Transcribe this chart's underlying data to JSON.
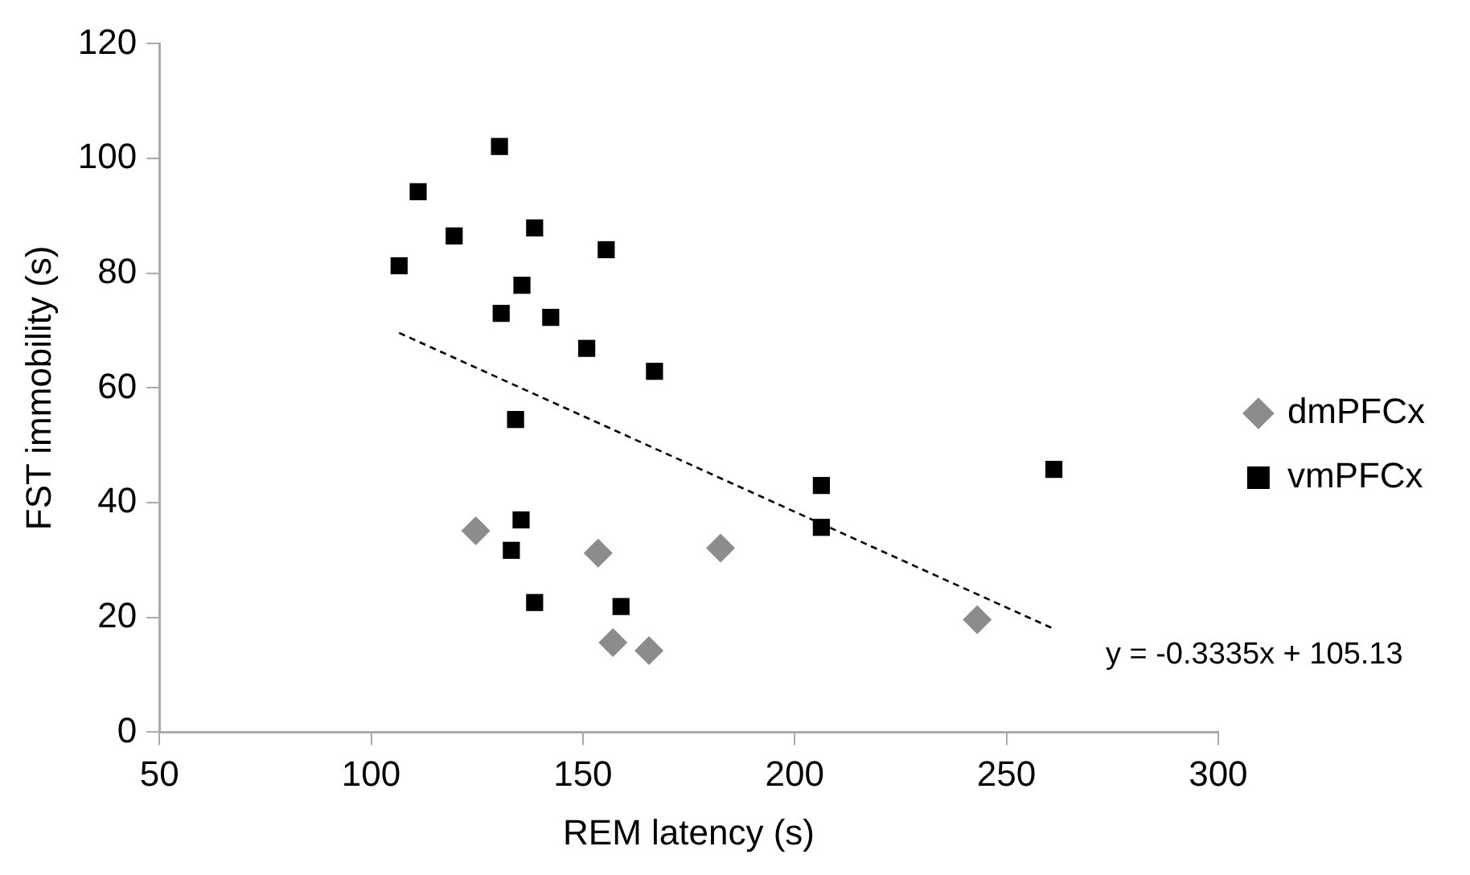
{
  "chart_data": {
    "type": "scatter",
    "xlabel": "REM latency (s)",
    "ylabel": "FST immobility (s)",
    "xlim": [
      50,
      300
    ],
    "xticks": [
      50,
      100,
      150,
      200,
      250,
      300
    ],
    "ylim": [
      0,
      120
    ],
    "yticks": [
      0,
      20,
      40,
      60,
      80,
      100,
      120
    ],
    "grid": false,
    "legend": "right",
    "annotations": [
      "y = -0.3335x + 105.13"
    ],
    "series": [
      {
        "name": "dmPFCx",
        "color": "#8c8c8c",
        "marker": "diamond",
        "x": [
          124.7,
          153.6,
          182.5,
          157.1,
          165.6,
          243.1
        ],
        "values": [
          35.1,
          31.2,
          32.1,
          15.6,
          14.2,
          19.6
        ]
      },
      {
        "name": "vmPFCx",
        "color": "#000000",
        "marker": "square",
        "x": [
          130.3,
          111.1,
          119.6,
          106.6,
          138.6,
          155.5,
          135.6,
          130.7,
          142.4,
          150.9,
          166.9,
          134.1,
          135.4,
          133.1,
          138.6,
          159.0,
          206.3,
          206.3,
          261.2
        ],
        "values": [
          102.1,
          94.2,
          86.5,
          81.3,
          87.9,
          84.1,
          77.9,
          73.0,
          72.3,
          66.9,
          62.9,
          54.5,
          37.0,
          31.7,
          22.6,
          21.9,
          43.0,
          35.7,
          45.8
        ]
      },
      {
        "type": "line",
        "color": "#000000",
        "marker": "none",
        "line_style": "dashed",
        "x": [
          106.6,
          261.5
        ],
        "values": [
          69.6,
          17.9
        ]
      }
    ]
  }
}
